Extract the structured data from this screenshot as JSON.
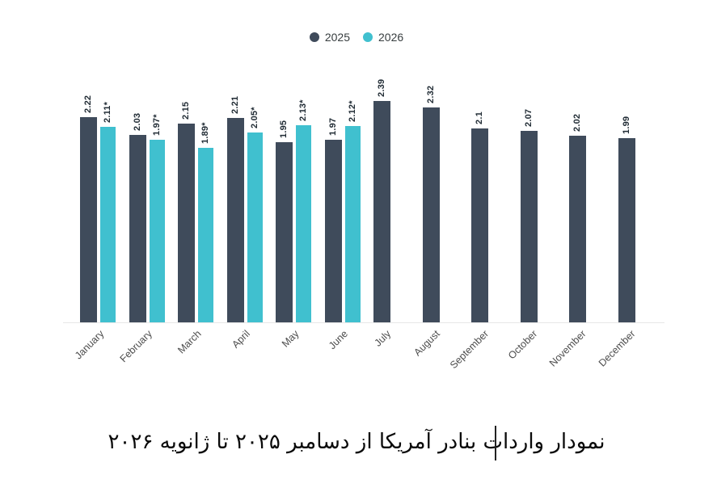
{
  "chart_data": {
    "type": "bar",
    "title": "نمودار واردات بنادر آمریکا از دسامبر ۲۰۲۵ تا ژانویه ۲۰۲۶",
    "categories": [
      "January",
      "February",
      "March",
      "April",
      "May",
      "June",
      "July",
      "August",
      "September",
      "October",
      "November",
      "December"
    ],
    "series": [
      {
        "name": "2025",
        "color": "#3F4B5B",
        "values": [
          2.22,
          2.03,
          2.15,
          2.21,
          1.95,
          1.97,
          2.39,
          2.32,
          2.1,
          2.07,
          2.02,
          1.99
        ],
        "labels": [
          "2.22",
          "2.03",
          "2.15",
          "2.21",
          "1.95",
          "1.97",
          "2.39",
          "2.32",
          "2.1",
          "2.07",
          "2.02",
          "1.99"
        ]
      },
      {
        "name": "2026",
        "color": "#40C0CF",
        "values": [
          2.11,
          1.97,
          1.89,
          2.05,
          2.13,
          2.12,
          null,
          null,
          null,
          null,
          null,
          null
        ],
        "labels": [
          "2.11*",
          "1.97*",
          "1.89*",
          "2.05*",
          "2.13*",
          "2.12*",
          null,
          null,
          null,
          null,
          null,
          null
        ]
      }
    ],
    "ylim": [
      0,
      2.6
    ],
    "grid": false,
    "legend_position": "top",
    "value_labels_rotation": -90,
    "category_labels_rotation": -45
  },
  "caption": {
    "cursor_visible": true
  }
}
